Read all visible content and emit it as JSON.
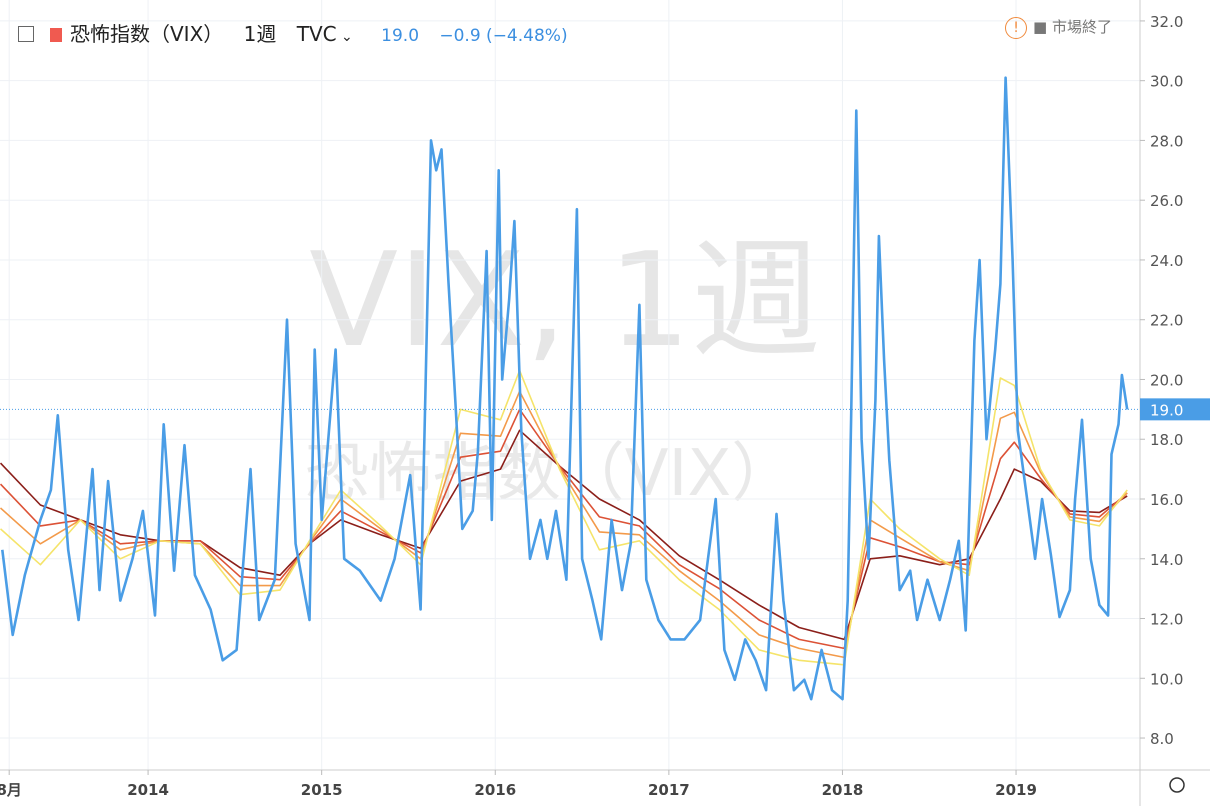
{
  "header": {
    "symbol": "恐怖指数（VIX）",
    "interval": "1週",
    "exchange": "TVC",
    "last": "19.0",
    "change": "−0.9 (−4.48%)",
    "status": "市場終了"
  },
  "watermark": {
    "line1": "VIX, 1週",
    "line2": "恐怖指数（VIX）"
  },
  "chart_data": {
    "type": "line",
    "xlim": [
      2013.147,
      2019.714
    ],
    "ylim": [
      6.93,
      32.7
    ],
    "xticks": [
      {
        "value": 2013.2,
        "label": "8月"
      },
      2014,
      2015,
      2016,
      2017,
      2018,
      2019
    ],
    "yticks": [
      {
        "value": 8,
        "label": "8.0"
      },
      {
        "value": 10,
        "label": "10.0"
      },
      {
        "value": 12,
        "label": "12.0"
      },
      {
        "value": 14,
        "label": "14.0"
      },
      {
        "value": 16,
        "label": "16.0"
      },
      {
        "value": 18,
        "label": "18.0"
      },
      {
        "value": 20,
        "label": "20.0"
      },
      {
        "value": 22,
        "label": "22.0"
      },
      {
        "value": 24,
        "label": "24.0"
      },
      {
        "value": 26,
        "label": "26.0"
      },
      {
        "value": 28,
        "label": "28.0"
      },
      {
        "value": 30,
        "label": "30.0"
      },
      {
        "value": 32,
        "label": "32.0"
      }
    ],
    "grid": true,
    "last_price": {
      "value": 19,
      "label": "19.0"
    },
    "x": [
      2013.16,
      2013.22,
      2013.29,
      2013.38,
      2013.44,
      2013.48,
      2013.54,
      2013.6,
      2013.68,
      2013.72,
      2013.77,
      2013.84,
      2013.91,
      2013.97,
      2014.04,
      2014.09,
      2014.15,
      2014.21,
      2014.27,
      2014.36,
      2014.43,
      2014.51,
      2014.59,
      2014.64,
      2014.73,
      2014.8,
      2014.85,
      2014.93,
      2014.96,
      2015.0,
      2015.08,
      2015.13,
      2015.22,
      2015.34,
      2015.42,
      2015.51,
      2015.57,
      2015.63,
      2015.66,
      2015.69,
      2015.73,
      2015.77,
      2015.81,
      2015.87,
      2015.9,
      2015.95,
      2015.98,
      2016.02,
      2016.04,
      2016.08,
      2016.11,
      2016.15,
      2016.2,
      2016.26,
      2016.3,
      2016.35,
      2016.41,
      2016.47,
      2016.5,
      2016.56,
      2016.61,
      2016.67,
      2016.73,
      2016.78,
      2016.83,
      2016.87,
      2016.94,
      2017.01,
      2017.09,
      2017.18,
      2017.27,
      2017.32,
      2017.38,
      2017.44,
      2017.5,
      2017.56,
      2017.62,
      2017.66,
      2017.72,
      2017.78,
      2017.82,
      2017.88,
      2017.94,
      2018.0,
      2018.03,
      2018.05,
      2018.08,
      2018.11,
      2018.15,
      2018.19,
      2018.21,
      2018.24,
      2018.27,
      2018.33,
      2018.39,
      2018.43,
      2018.49,
      2018.56,
      2018.62,
      2018.67,
      2018.71,
      2018.76,
      2018.79,
      2018.83,
      2018.88,
      2018.91,
      2018.94,
      2018.98,
      2019.01,
      2019.05,
      2019.11,
      2019.15,
      2019.2,
      2019.25,
      2019.31,
      2019.34,
      2019.38,
      2019.43,
      2019.48,
      2019.53,
      2019.55,
      2019.59,
      2019.61,
      2019.64
    ],
    "series": [
      {
        "color": "#4a9de6",
        "values": [
          14.3,
          11.45,
          13.45,
          15.3,
          16.3,
          18.8,
          14.3,
          11.95,
          17.0,
          12.95,
          16.6,
          12.6,
          14.0,
          15.6,
          12.1,
          18.5,
          13.6,
          17.8,
          13.45,
          12.3,
          10.6,
          10.95,
          17.0,
          11.95,
          13.3,
          22.0,
          14.5,
          11.95,
          21.0,
          15.3,
          21.0,
          14.0,
          13.6,
          12.6,
          14.0,
          16.8,
          12.3,
          28.0,
          27.0,
          27.7,
          23.3,
          19.3,
          15.0,
          15.6,
          17.6,
          24.3,
          15.3,
          27.0,
          20.0,
          22.7,
          25.3,
          18.3,
          14.0,
          15.3,
          14.0,
          15.6,
          13.3,
          25.7,
          14.0,
          12.6,
          11.3,
          15.3,
          12.95,
          14.5,
          22.5,
          13.3,
          11.95,
          11.3,
          11.3,
          11.95,
          16.0,
          10.95,
          9.95,
          11.3,
          10.6,
          9.6,
          15.5,
          12.6,
          9.6,
          9.95,
          9.3,
          10.95,
          9.6,
          9.3,
          12.6,
          18.65,
          29.0,
          18.0,
          14.0,
          19.3,
          24.8,
          20.65,
          17.3,
          12.95,
          13.6,
          11.95,
          13.3,
          11.95,
          13.3,
          14.6,
          11.6,
          21.3,
          24.0,
          18.0,
          21.0,
          23.2,
          30.1,
          24.0,
          18.3,
          16.6,
          14.0,
          16.0,
          14.15,
          12.05,
          12.95,
          16.0,
          18.65,
          14.0,
          12.45,
          12.1,
          17.5,
          18.5,
          20.15,
          19.0
        ]
      }
    ]
  },
  "ribbon": {
    "x": [
      2013.15,
      2013.38,
      2013.61,
      2013.84,
      2014.07,
      2014.3,
      2014.53,
      2014.76,
      2014.93,
      2015.11,
      2015.34,
      2015.57,
      2015.8,
      2016.03,
      2016.14,
      2016.37,
      2016.6,
      2016.83,
      2017.06,
      2017.29,
      2017.52,
      2017.75,
      2018.01,
      2018.16,
      2018.33,
      2018.56,
      2018.73,
      2018.91,
      2018.99,
      2019.14,
      2019.31,
      2019.48,
      2019.64
    ],
    "series": [
      {
        "color": "#f5e46a",
        "values": [
          15.0,
          13.8,
          15.3,
          14.0,
          14.6,
          14.5,
          12.8,
          12.95,
          14.6,
          16.3,
          15.1,
          13.8,
          19.0,
          18.65,
          20.3,
          17.0,
          14.3,
          14.6,
          13.3,
          12.3,
          10.95,
          10.6,
          10.45,
          16.0,
          15.0,
          14.0,
          13.45,
          20.05,
          19.8,
          17.0,
          15.3,
          15.1,
          16.3
        ]
      },
      {
        "color": "#f39a4a",
        "values": [
          15.7,
          14.5,
          15.3,
          14.3,
          14.6,
          14.5,
          13.1,
          13.1,
          14.55,
          16.0,
          15.0,
          14.0,
          18.2,
          18.1,
          19.6,
          17.05,
          14.9,
          14.8,
          13.6,
          12.6,
          11.45,
          11.0,
          10.7,
          15.3,
          14.7,
          13.9,
          13.6,
          18.7,
          18.9,
          16.9,
          15.4,
          15.25,
          16.2
        ]
      },
      {
        "color": "#dc5236",
        "values": [
          16.5,
          15.1,
          15.3,
          14.5,
          14.6,
          14.6,
          13.4,
          13.3,
          14.5,
          15.6,
          14.9,
          14.2,
          17.4,
          17.6,
          19.0,
          17.1,
          15.4,
          15.1,
          13.8,
          13.0,
          11.95,
          11.3,
          11.0,
          14.7,
          14.4,
          13.9,
          13.8,
          17.35,
          17.9,
          16.7,
          15.5,
          15.4,
          16.2
        ]
      },
      {
        "color": "#8b1f1a",
        "values": [
          17.2,
          15.8,
          15.3,
          14.8,
          14.6,
          14.6,
          13.7,
          13.45,
          14.5,
          15.3,
          14.8,
          14.35,
          16.6,
          17.0,
          18.3,
          17.1,
          16.0,
          15.3,
          14.1,
          13.3,
          12.45,
          11.7,
          11.3,
          14.0,
          14.1,
          13.8,
          14.0,
          16.0,
          17.0,
          16.6,
          15.6,
          15.55,
          16.1
        ]
      }
    ]
  }
}
